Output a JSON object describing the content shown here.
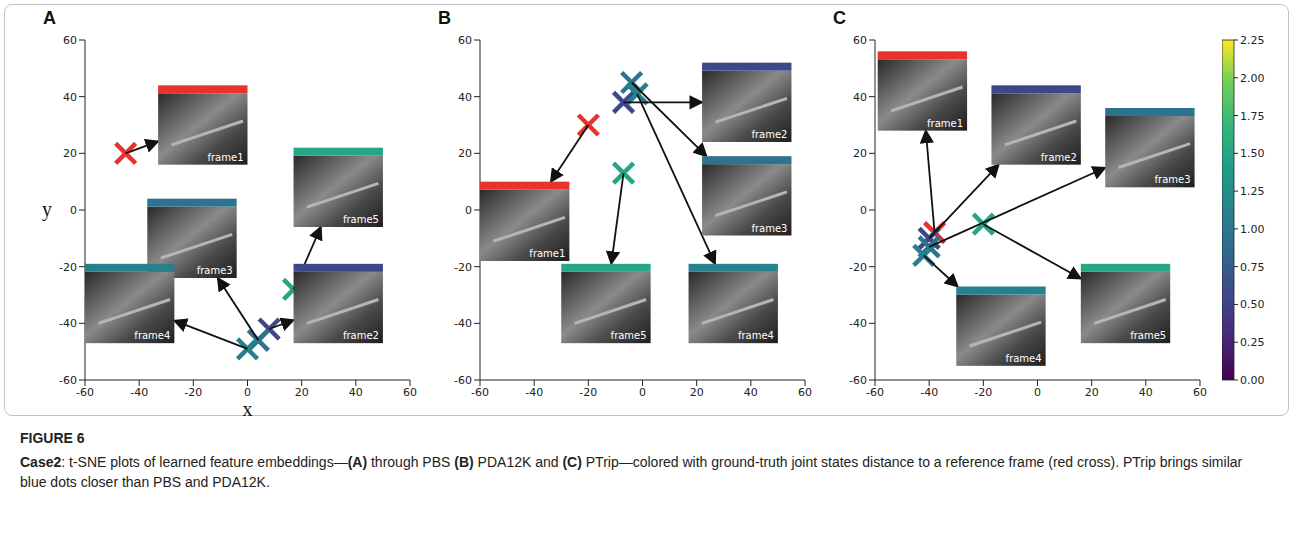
{
  "figure": {
    "label": "FIGURE 6",
    "caption": [
      {
        "text": "Case2",
        "bold": true
      },
      {
        "text": ": t-SNE plots of learned feature embeddings—",
        "bold": false
      },
      {
        "text": "(A)",
        "bold": true
      },
      {
        "text": " through PBS ",
        "bold": false
      },
      {
        "text": "(B)",
        "bold": true
      },
      {
        "text": " PDA12K and ",
        "bold": false
      },
      {
        "text": "(C)",
        "bold": true
      },
      {
        "text": " PTrip—colored with ground-truth joint states distance to a reference frame (red cross). PTrip brings similar blue dots closer than PBS and PDA12K.",
        "bold": false
      }
    ]
  },
  "chart_data": [
    {
      "type": "scatter",
      "panel_label": "A",
      "xlabel": "x",
      "ylabel": "y",
      "xlim": [
        -60,
        60
      ],
      "ylim": [
        -60,
        60
      ],
      "xticks": [
        -60,
        -40,
        -20,
        0,
        20,
        40,
        60
      ],
      "yticks": [
        -60,
        -40,
        -20,
        0,
        20,
        40,
        60
      ],
      "points": [
        {
          "label": "frame1",
          "x": -45,
          "y": 20,
          "color": "#e8322b"
        },
        {
          "label": "frame2",
          "x": 8,
          "y": -42,
          "distance": 0.55
        },
        {
          "label": "frame3",
          "x": 4,
          "y": -46,
          "distance": 0.95
        },
        {
          "label": "frame4",
          "x": 0,
          "y": -49,
          "distance": 1.1
        },
        {
          "label": "frame5",
          "x": 17,
          "y": -28,
          "distance": 1.5
        }
      ]
    },
    {
      "type": "scatter",
      "panel_label": "B",
      "xlim": [
        -60,
        60
      ],
      "ylim": [
        -60,
        60
      ],
      "xticks": [
        -60,
        -40,
        -20,
        0,
        20,
        40,
        60
      ],
      "yticks": [
        -60,
        -40,
        -20,
        0,
        20,
        40,
        60
      ],
      "points": [
        {
          "label": "frame1",
          "x": -20,
          "y": 30,
          "color": "#e8322b"
        },
        {
          "label": "frame2",
          "x": -7,
          "y": 38,
          "distance": 0.55
        },
        {
          "label": "frame3",
          "x": -4,
          "y": 45,
          "distance": 0.95
        },
        {
          "label": "frame4",
          "x": -2,
          "y": 41,
          "distance": 1.1
        },
        {
          "label": "frame5",
          "x": -7,
          "y": 13,
          "distance": 1.5
        }
      ]
    },
    {
      "type": "scatter",
      "panel_label": "C",
      "xlim": [
        -60,
        60
      ],
      "ylim": [
        -60,
        60
      ],
      "xticks": [
        -60,
        -40,
        -20,
        0,
        20,
        40,
        60
      ],
      "yticks": [
        -60,
        -40,
        -20,
        0,
        20,
        40,
        60
      ],
      "points": [
        {
          "label": "frame1",
          "x": -38,
          "y": -8,
          "color": "#e8322b"
        },
        {
          "label": "frame2",
          "x": -40,
          "y": -10,
          "distance": 0.55
        },
        {
          "label": "frame3",
          "x": -40,
          "y": -13,
          "distance": 0.95
        },
        {
          "label": "frame4",
          "x": -42,
          "y": -16,
          "distance": 1.1
        },
        {
          "label": "frame5",
          "x": -20,
          "y": -5,
          "distance": 1.5
        }
      ]
    }
  ],
  "colorbar": {
    "range": [
      0,
      2.25
    ],
    "ticks": [
      {
        "value": 0,
        "label": "0.00"
      },
      {
        "value": 0.25,
        "label": "0.25"
      },
      {
        "value": 0.5,
        "label": "0.50"
      },
      {
        "value": 0.75,
        "label": "0.75"
      },
      {
        "value": 1,
        "label": "1.00"
      },
      {
        "value": 1.25,
        "label": "1.25"
      },
      {
        "value": 1.5,
        "label": "1.50"
      },
      {
        "value": 1.75,
        "label": "1.75"
      },
      {
        "value": 2,
        "label": "2.00"
      },
      {
        "value": 2.25,
        "label": "2.25"
      }
    ]
  }
}
